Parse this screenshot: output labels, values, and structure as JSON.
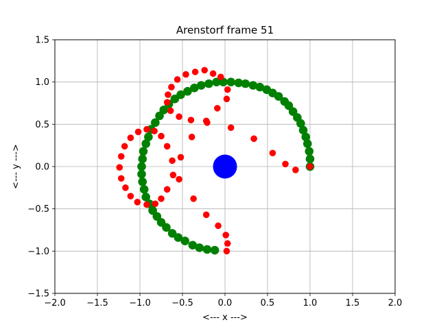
{
  "chart_data": {
    "type": "scatter",
    "title": "Arenstorf frame 51",
    "xlabel": "<---  x  --->",
    "ylabel": "<---  y  --->",
    "xlim": [
      -2.0,
      2.0
    ],
    "ylim": [
      -1.5,
      1.5
    ],
    "x_ticks": [
      "−2.0",
      "−1.5",
      "−1.0",
      "−0.5",
      "0.0",
      "0.5",
      "1.0",
      "1.5",
      "2.0"
    ],
    "y_ticks": [
      "−1.5",
      "−1.0",
      "−0.5",
      "0.0",
      "0.5",
      "1.0",
      "1.5"
    ],
    "x_tick_values": [
      -2.0,
      -1.5,
      -1.0,
      -0.5,
      0.0,
      0.5,
      1.0,
      1.5,
      2.0
    ],
    "y_tick_values": [
      -1.5,
      -1.0,
      -0.5,
      0.0,
      0.5,
      1.0,
      1.5
    ],
    "grid": true,
    "series": [
      {
        "color": "#008000",
        "marker_size": "large",
        "points": [
          [
            1.0,
            0.0
          ],
          [
            1.0,
            0.09
          ],
          [
            0.99,
            0.18
          ],
          [
            0.97,
            0.27
          ],
          [
            0.95,
            0.35
          ],
          [
            0.92,
            0.43
          ],
          [
            0.89,
            0.51
          ],
          [
            0.85,
            0.58
          ],
          [
            0.8,
            0.65
          ],
          [
            0.75,
            0.72
          ],
          [
            0.7,
            0.77
          ],
          [
            0.63,
            0.83
          ],
          [
            0.56,
            0.87
          ],
          [
            0.49,
            0.91
          ],
          [
            0.41,
            0.94
          ],
          [
            0.33,
            0.96
          ],
          [
            0.24,
            0.98
          ],
          [
            0.16,
            0.99
          ],
          [
            0.07,
            1.0
          ],
          [
            -0.02,
            1.0
          ],
          [
            -0.1,
            1.0
          ],
          [
            -0.19,
            0.98
          ],
          [
            -0.28,
            0.96
          ],
          [
            -0.36,
            0.93
          ],
          [
            -0.44,
            0.89
          ],
          [
            -0.52,
            0.85
          ],
          [
            -0.59,
            0.8
          ],
          [
            -0.66,
            0.74
          ],
          [
            -0.72,
            0.67
          ],
          [
            -0.77,
            0.6
          ],
          [
            -0.82,
            0.52
          ],
          [
            -0.87,
            0.44
          ],
          [
            -0.9,
            0.35
          ],
          [
            -0.93,
            0.27
          ],
          [
            -0.96,
            0.18
          ],
          [
            -0.97,
            0.09
          ],
          [
            -0.98,
            0.0
          ],
          [
            -0.98,
            -0.09
          ],
          [
            -0.97,
            -0.18
          ],
          [
            -0.95,
            -0.27
          ],
          [
            -0.93,
            -0.36
          ],
          [
            -0.89,
            -0.44
          ],
          [
            -0.85,
            -0.52
          ],
          [
            -0.8,
            -0.59
          ],
          [
            -0.75,
            -0.66
          ],
          [
            -0.69,
            -0.72
          ],
          [
            -0.62,
            -0.79
          ],
          [
            -0.55,
            -0.84
          ],
          [
            -0.47,
            -0.88
          ],
          [
            -0.38,
            -0.93
          ],
          [
            -0.3,
            -0.96
          ],
          [
            -0.21,
            -0.98
          ],
          [
            -0.12,
            -0.99
          ]
        ]
      },
      {
        "color": "#ff0000",
        "marker_size": "small",
        "points": [
          [
            1.0,
            0.0
          ],
          [
            0.83,
            -0.04
          ],
          [
            0.71,
            0.03
          ],
          [
            0.56,
            0.16
          ],
          [
            0.34,
            0.33
          ],
          [
            0.07,
            0.46
          ],
          [
            -0.21,
            0.52
          ],
          [
            -0.39,
            0.35
          ],
          [
            -0.52,
            0.11
          ],
          [
            -0.61,
            -0.1
          ],
          [
            -0.68,
            -0.27
          ],
          [
            -0.75,
            -0.38
          ],
          [
            -0.82,
            -0.44
          ],
          [
            -0.92,
            -0.45
          ],
          [
            -1.03,
            -0.42
          ],
          [
            -1.11,
            -0.35
          ],
          [
            -1.17,
            -0.25
          ],
          [
            -1.22,
            -0.14
          ],
          [
            -1.24,
            -0.01
          ],
          [
            -1.22,
            0.12
          ],
          [
            -1.18,
            0.24
          ],
          [
            -1.11,
            0.34
          ],
          [
            -1.02,
            0.41
          ],
          [
            -0.92,
            0.44
          ],
          [
            -0.83,
            0.42
          ],
          [
            -0.75,
            0.36
          ],
          [
            -0.68,
            0.24
          ],
          [
            -0.62,
            0.07
          ],
          [
            -0.54,
            -0.15
          ],
          [
            -0.37,
            -0.38
          ],
          [
            -0.22,
            -0.57
          ],
          [
            -0.08,
            -0.7
          ],
          [
            0.01,
            -0.81
          ],
          [
            0.03,
            -0.91
          ],
          [
            0.02,
            -1.0
          ],
          [
            0.02,
            0.8
          ],
          [
            0.03,
            0.91
          ],
          [
            -0.05,
            1.06
          ],
          [
            -0.14,
            1.1
          ],
          [
            -0.24,
            1.14
          ],
          [
            -0.35,
            1.12
          ],
          [
            -0.46,
            1.09
          ],
          [
            -0.56,
            1.03
          ],
          [
            -0.63,
            0.94
          ],
          [
            -0.67,
            0.85
          ],
          [
            -0.68,
            0.76
          ],
          [
            -0.64,
            0.66
          ],
          [
            -0.54,
            0.59
          ],
          [
            -0.4,
            0.55
          ],
          [
            -0.22,
            0.54
          ],
          [
            -0.09,
            0.69
          ]
        ]
      },
      {
        "color": "#0000ff",
        "marker_size": "huge",
        "points": [
          [
            0.0,
            0.0
          ]
        ]
      }
    ]
  }
}
